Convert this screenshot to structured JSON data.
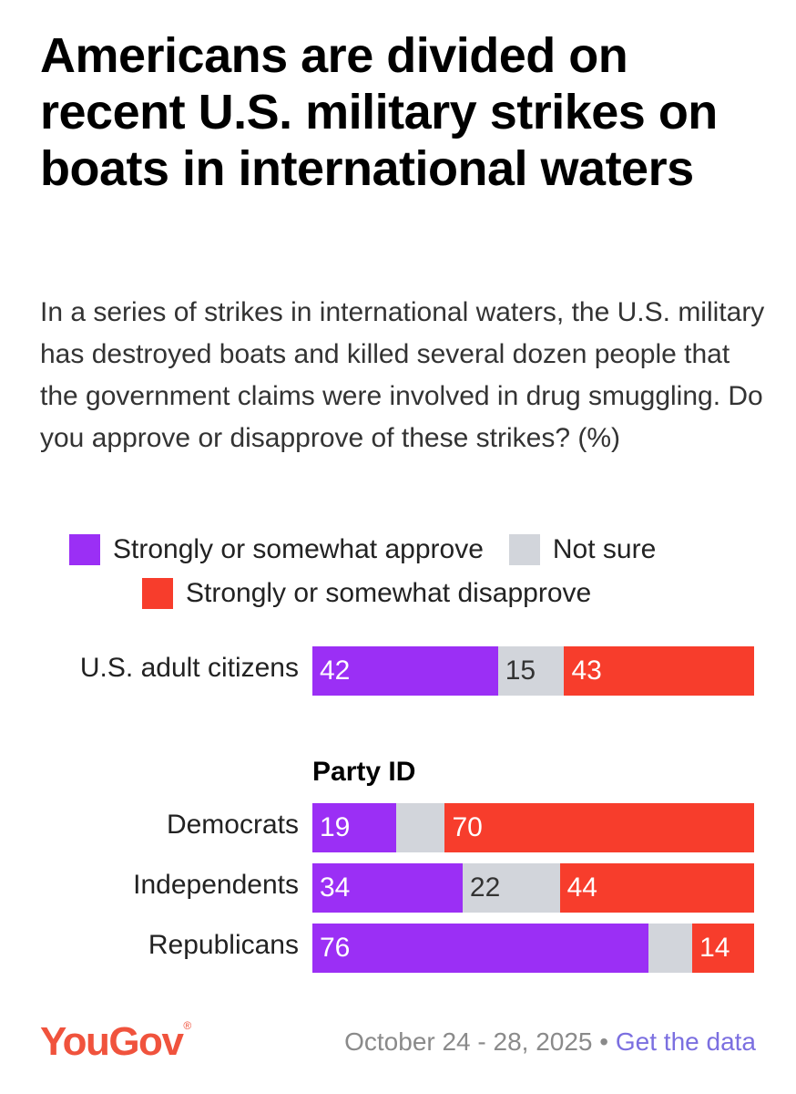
{
  "header": {
    "title": "Americans are divided on recent U.S. military strikes on boats in international waters",
    "subtitle": "In a series of strikes in international waters, the U.S. military has destroyed boats and killed several dozen people that the government claims were involved in drug smuggling. Do you approve or disapprove of these strikes? (%)"
  },
  "colors": {
    "approve": "#9b2ff5",
    "not_sure": "#d2d5db",
    "disapprove": "#f73d2c",
    "brand": "#f0533d"
  },
  "chart_data": {
    "type": "bar",
    "orientation": "horizontal",
    "stacked": true,
    "unit": "%",
    "legend": [
      {
        "key": "approve",
        "label": "Strongly or somewhat approve"
      },
      {
        "key": "not_sure",
        "label": "Not sure"
      },
      {
        "key": "disapprove",
        "label": "Strongly or somewhat disapprove"
      }
    ],
    "group_heading": "Party ID",
    "rows": [
      {
        "label": "U.S. adult citizens",
        "approve": 42,
        "not_sure": 15,
        "disapprove": 43,
        "show_not_sure": true
      },
      {
        "label": "Democrats",
        "approve": 19,
        "not_sure": 11,
        "disapprove": 70,
        "show_not_sure": false
      },
      {
        "label": "Independents",
        "approve": 34,
        "not_sure": 22,
        "disapprove": 44,
        "show_not_sure": true
      },
      {
        "label": "Republicans",
        "approve": 76,
        "not_sure": 10,
        "disapprove": 14,
        "show_not_sure": false
      }
    ]
  },
  "footer": {
    "logo": "YouGov",
    "date": "October 24 - 28, 2025",
    "separator": "•",
    "link": "Get the data"
  }
}
